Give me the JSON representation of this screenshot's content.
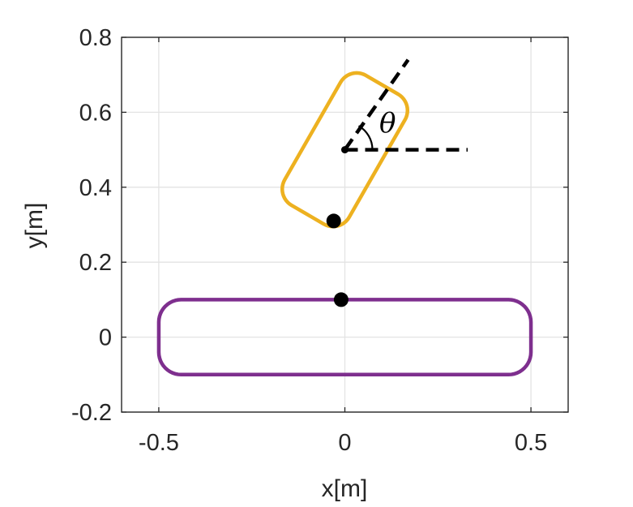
{
  "chart_data": {
    "type": "line",
    "title": "",
    "xlabel": "x[m]",
    "ylabel": "y[m]",
    "xlim": [
      -0.6,
      0.6
    ],
    "ylim": [
      -0.2,
      0.8
    ],
    "x_ticks": [
      -0.5,
      0,
      0.5
    ],
    "x_tick_labels": [
      "-0.5",
      "0",
      "0.5"
    ],
    "y_ticks": [
      -0.2,
      0,
      0.2,
      0.4,
      0.6,
      0.8
    ],
    "y_tick_labels": [
      "-0.2",
      "0",
      "0.2",
      "0.4",
      "0.6",
      "0.8"
    ],
    "grid": true,
    "legend": "none",
    "series": [
      {
        "shape": "rounded-rectangle",
        "color": "#7E2F8E",
        "center": [
          0.0,
          0.0
        ],
        "half_length": 0.5,
        "half_width": 0.1,
        "angle_deg": 0,
        "corner_radius": 0.06
      },
      {
        "shape": "rounded-rectangle",
        "color": "#EDB120",
        "center": [
          0.0,
          0.5
        ],
        "half_length": 0.2,
        "half_width": 0.1,
        "angle_deg": 60,
        "corner_radius": 0.05
      }
    ],
    "points": [
      {
        "x": -0.03,
        "y": 0.31,
        "size": "large",
        "color": "#000000"
      },
      {
        "x": -0.01,
        "y": 0.1,
        "size": "large",
        "color": "#000000"
      },
      {
        "x": 0.0,
        "y": 0.5,
        "size": "small",
        "color": "#000000"
      }
    ],
    "annotations": {
      "theta_label": "θ",
      "reference_line": {
        "from": [
          0.0,
          0.5
        ],
        "to": [
          0.33,
          0.5
        ],
        "style": "dashed",
        "color": "#000000"
      },
      "orientation_line": {
        "from": [
          0.0,
          0.5
        ],
        "to": [
          0.17,
          0.74
        ],
        "style": "dashed",
        "color": "#000000"
      },
      "angle_arc": {
        "center": [
          0.0,
          0.5
        ],
        "angle_deg": 60
      }
    }
  }
}
